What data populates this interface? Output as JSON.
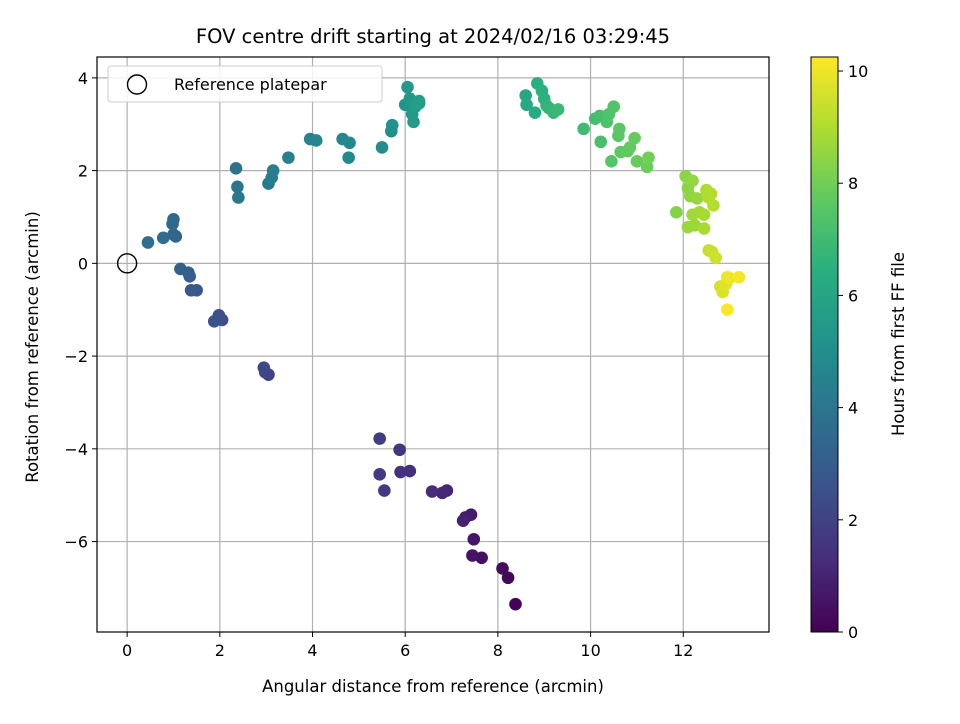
{
  "chart_data": {
    "type": "scatter",
    "title": "FOV centre drift starting at 2024/02/16 03:29:45",
    "xlabel": "Angular distance from reference (arcmin)",
    "ylabel": "Rotation from reference (arcmin)",
    "xlim": [
      -0.65,
      13.85
    ],
    "ylim": [
      -7.95,
      4.45
    ],
    "xticks": [
      0,
      2,
      4,
      6,
      8,
      10,
      12
    ],
    "yticks": [
      -6,
      -4,
      -2,
      0,
      2,
      4
    ],
    "xtick_labels": [
      "0",
      "2",
      "4",
      "6",
      "8",
      "10",
      "12"
    ],
    "ytick_labels": [
      "−6",
      "−4",
      "−2",
      "0",
      "2",
      "4"
    ],
    "grid": true,
    "legend": {
      "position": "top-left",
      "entries": [
        "Reference platepar"
      ]
    },
    "reference_point": {
      "x": 0,
      "y": 0
    },
    "colorbar": {
      "label": "Hours from first FF file",
      "range": [
        0,
        10.25
      ],
      "ticks": [
        0,
        2,
        4,
        6,
        8,
        10
      ],
      "tick_labels": [
        "0",
        "2",
        "4",
        "6",
        "8",
        "10"
      ],
      "colormap": "viridis"
    },
    "points": [
      [
        8.38,
        -7.35,
        0.05
      ],
      [
        8.22,
        -6.78,
        0.2
      ],
      [
        8.1,
        -6.58,
        0.3
      ],
      [
        7.65,
        -6.35,
        0.45
      ],
      [
        7.45,
        -6.3,
        0.55
      ],
      [
        7.48,
        -5.95,
        0.65
      ],
      [
        7.42,
        -5.42,
        0.75
      ],
      [
        7.3,
        -5.48,
        0.85
      ],
      [
        7.25,
        -5.55,
        0.95
      ],
      [
        6.9,
        -4.9,
        1.05
      ],
      [
        6.8,
        -4.95,
        1.15
      ],
      [
        6.58,
        -4.92,
        1.25
      ],
      [
        6.1,
        -4.48,
        1.35
      ],
      [
        5.9,
        -4.5,
        1.45
      ],
      [
        5.88,
        -4.02,
        1.55
      ],
      [
        5.55,
        -4.9,
        1.65
      ],
      [
        5.45,
        -4.55,
        1.72
      ],
      [
        5.45,
        -3.78,
        1.8
      ],
      [
        3.05,
        -2.4,
        2.0
      ],
      [
        2.98,
        -2.35,
        2.1
      ],
      [
        2.95,
        -2.25,
        2.2
      ],
      [
        2.05,
        -1.22,
        2.4
      ],
      [
        1.98,
        -1.12,
        2.5
      ],
      [
        1.88,
        -1.25,
        2.6
      ],
      [
        1.5,
        -0.58,
        2.75
      ],
      [
        1.38,
        -0.58,
        2.85
      ],
      [
        1.35,
        -0.28,
        2.95
      ],
      [
        1.32,
        -0.2,
        3.05
      ],
      [
        1.15,
        -0.12,
        3.15
      ],
      [
        1.05,
        0.58,
        3.25
      ],
      [
        1.0,
        0.62,
        3.35
      ],
      [
        0.98,
        0.85,
        3.45
      ],
      [
        1.0,
        0.95,
        3.5
      ],
      [
        0.78,
        0.55,
        3.6
      ],
      [
        0.45,
        0.45,
        3.7
      ],
      [
        2.35,
        2.05,
        3.85
      ],
      [
        2.38,
        1.65,
        3.95
      ],
      [
        2.4,
        1.42,
        4.05
      ],
      [
        3.05,
        1.72,
        4.15
      ],
      [
        3.12,
        1.85,
        4.25
      ],
      [
        3.15,
        2.0,
        4.35
      ],
      [
        3.48,
        2.28,
        4.45
      ],
      [
        3.95,
        2.68,
        4.55
      ],
      [
        4.08,
        2.65,
        4.6
      ],
      [
        4.65,
        2.68,
        4.7
      ],
      [
        4.8,
        2.6,
        4.8
      ],
      [
        4.78,
        2.28,
        4.85
      ],
      [
        5.5,
        2.5,
        4.95
      ],
      [
        5.7,
        2.85,
        5.05
      ],
      [
        5.72,
        2.98,
        5.15
      ],
      [
        6.0,
        3.42,
        5.3
      ],
      [
        6.05,
        3.8,
        5.4
      ],
      [
        6.1,
        3.55,
        5.45
      ],
      [
        6.15,
        3.22,
        5.5
      ],
      [
        6.18,
        3.05,
        5.55
      ],
      [
        6.22,
        3.38,
        5.6
      ],
      [
        6.3,
        3.45,
        5.65
      ],
      [
        6.3,
        3.5,
        5.7
      ],
      [
        8.6,
        3.62,
        6.1
      ],
      [
        8.62,
        3.42,
        6.2
      ],
      [
        8.8,
        3.25,
        6.3
      ],
      [
        8.85,
        3.88,
        6.4
      ],
      [
        8.95,
        3.72,
        6.45
      ],
      [
        9.0,
        3.55,
        6.5
      ],
      [
        9.05,
        3.4,
        6.6
      ],
      [
        9.1,
        3.35,
        6.7
      ],
      [
        9.2,
        3.25,
        6.8
      ],
      [
        9.3,
        3.32,
        6.9
      ],
      [
        9.85,
        2.9,
        7.0
      ],
      [
        10.1,
        3.12,
        7.1
      ],
      [
        10.2,
        3.18,
        7.15
      ],
      [
        10.22,
        2.62,
        7.2
      ],
      [
        10.35,
        3.05,
        7.3
      ],
      [
        10.4,
        3.22,
        7.35
      ],
      [
        10.5,
        3.38,
        7.4
      ],
      [
        10.45,
        2.2,
        7.5
      ],
      [
        10.6,
        2.75,
        7.55
      ],
      [
        10.62,
        2.9,
        7.6
      ],
      [
        10.65,
        2.4,
        7.65
      ],
      [
        10.8,
        2.42,
        7.7
      ],
      [
        10.85,
        2.5,
        7.75
      ],
      [
        10.95,
        2.7,
        7.8
      ],
      [
        11.0,
        2.2,
        7.85
      ],
      [
        11.22,
        2.08,
        7.9
      ],
      [
        11.25,
        2.28,
        8.0
      ],
      [
        11.85,
        1.1,
        8.3
      ],
      [
        12.05,
        1.88,
        8.4
      ],
      [
        12.1,
        1.62,
        8.45
      ],
      [
        12.15,
        1.45,
        8.5
      ],
      [
        12.2,
        1.78,
        8.55
      ],
      [
        12.3,
        1.4,
        8.6
      ],
      [
        12.1,
        0.78,
        8.65
      ],
      [
        12.25,
        0.82,
        8.7
      ],
      [
        12.2,
        1.05,
        8.75
      ],
      [
        12.35,
        1.1,
        8.8
      ],
      [
        12.45,
        1.05,
        8.85
      ],
      [
        12.45,
        0.75,
        8.9
      ],
      [
        12.5,
        1.58,
        8.95
      ],
      [
        12.55,
        1.42,
        9.0
      ],
      [
        12.6,
        1.5,
        9.05
      ],
      [
        12.65,
        1.25,
        9.1
      ],
      [
        12.55,
        0.28,
        9.3
      ],
      [
        12.62,
        0.25,
        9.4
      ],
      [
        12.7,
        0.12,
        9.5
      ],
      [
        12.8,
        -0.5,
        9.6
      ],
      [
        12.85,
        -0.62,
        9.7
      ],
      [
        12.92,
        -0.45,
        9.8
      ],
      [
        12.95,
        -0.3,
        9.9
      ],
      [
        13.0,
        -0.32,
        10.0
      ],
      [
        13.2,
        -0.3,
        10.1
      ],
      [
        12.95,
        -1.0,
        10.2
      ]
    ]
  }
}
